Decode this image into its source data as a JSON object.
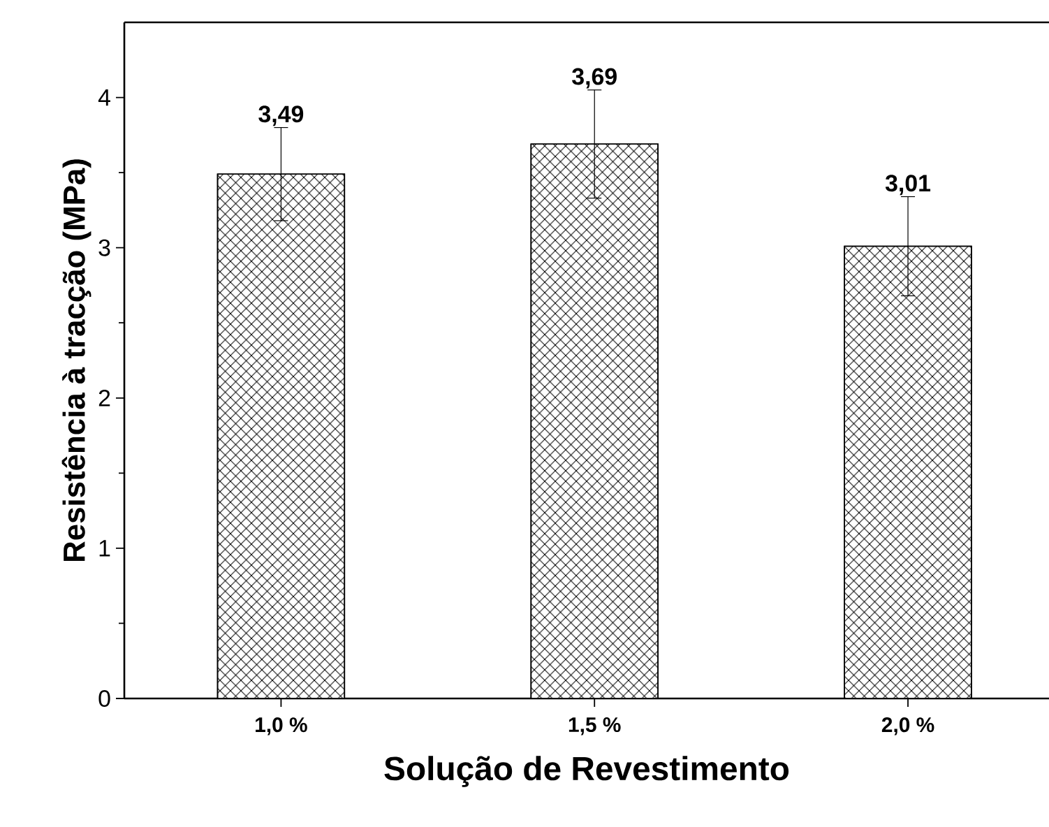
{
  "chart_data": {
    "type": "bar",
    "xlabel": "Solução de Revestimento",
    "ylabel": "Resistência à tracção (MPa)",
    "categories": [
      "1,0 %",
      "1,5 %",
      "2,0 %"
    ],
    "values": [
      3.49,
      3.69,
      3.01
    ],
    "errors": [
      0.31,
      0.36,
      0.33
    ],
    "value_labels": [
      "3,49",
      "3,69",
      "3,01"
    ],
    "color": "#000000",
    "ylim": [
      0,
      4.5
    ],
    "yticks": [
      0,
      {
        "value": 0.5,
        "label": null
      },
      1,
      {
        "value": 1.5,
        "label": null
      },
      2,
      {
        "value": 2.5,
        "label": null
      },
      3,
      {
        "value": 3.5,
        "label": null
      },
      4
    ]
  }
}
